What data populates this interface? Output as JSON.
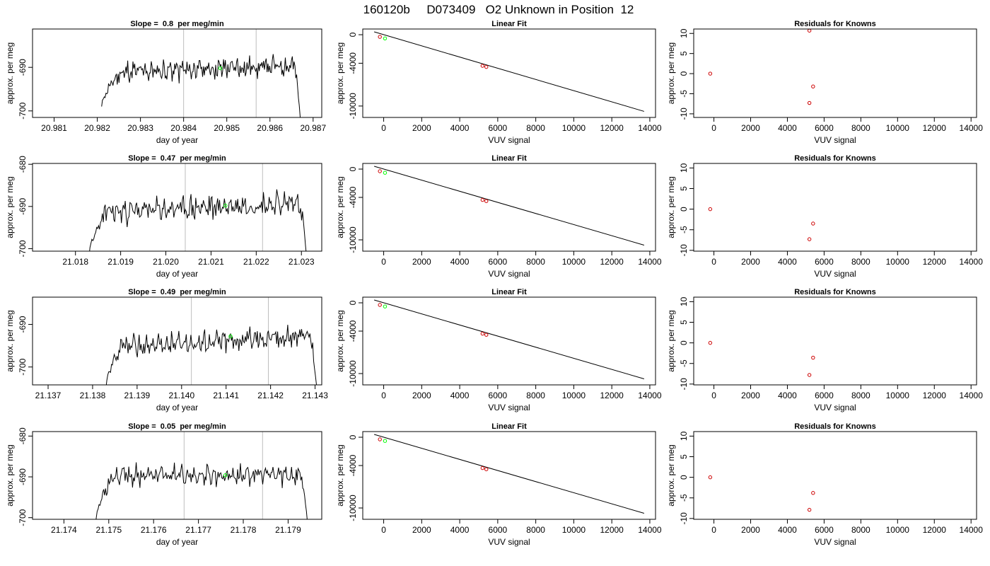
{
  "figure": {
    "title": "160120b     D073409   O2 Unknown in Position  12"
  },
  "chart_data": [
    {
      "type": "line",
      "panel": "timeseries",
      "row": 0,
      "title": "Slope =  0.8  per meg/min",
      "xlabel": "day of year",
      "ylabel": "approx. per meg",
      "xlim": [
        20.9805,
        20.9872
      ],
      "ylim": [
        -701.5,
        -681.2
      ],
      "xticks": [
        20.981,
        20.982,
        20.983,
        20.984,
        20.985,
        20.986,
        20.987
      ],
      "xtick_labels": [
        "20.981",
        "20.982",
        "20.983",
        "20.984",
        "20.985",
        "20.986",
        "20.987"
      ],
      "yticks": [
        -700,
        -690
      ],
      "ytick_labels": [
        "-700",
        "-690"
      ],
      "vlines": [
        20.984,
        20.98568
      ],
      "trace": {
        "x_start": 20.9821,
        "x_end": 20.98672,
        "base": -690.4,
        "trend": 1.8,
        "settle": -699,
        "settle_frac": 0.1,
        "end_drop": -703,
        "drop_frac": 0.03,
        "noise": 1.4,
        "n": 230,
        "seed": 11
      },
      "marker": {
        "x": 20.98485,
        "y": -690.2
      },
      "line_color": "#000000",
      "vline_color": "#bebebe",
      "marker_color": "#00ff00"
    },
    {
      "type": "line",
      "panel": "timeseries",
      "row": 1,
      "title": "Slope =  0.47  per meg/min",
      "xlabel": "day of year",
      "ylabel": "approx. per meg",
      "xlim": [
        21.01705,
        21.02345
      ],
      "ylim": [
        -700.6,
        -679.8
      ],
      "xticks": [
        21.018,
        21.019,
        21.02,
        21.021,
        21.022,
        21.023
      ],
      "xtick_labels": [
        "21.018",
        "21.019",
        "21.020",
        "21.021",
        "21.022",
        "21.023"
      ],
      "yticks": [
        -700,
        -690,
        -680
      ],
      "ytick_labels": [
        "-700",
        "-690",
        "-680"
      ],
      "vlines": [
        21.02043,
        21.02214
      ],
      "trace": {
        "x_start": 21.0183,
        "x_end": 21.02313,
        "base": -690.3,
        "trend": 2.6,
        "settle": -702,
        "settle_frac": 0.08,
        "end_drop": -703,
        "drop_frac": 0.03,
        "noise": 1.6,
        "n": 230,
        "seed": 23
      },
      "marker": {
        "x": 21.02132,
        "y": -689.8
      },
      "line_color": "#000000",
      "vline_color": "#bebebe",
      "marker_color": "#00ff00"
    },
    {
      "type": "line",
      "panel": "timeseries",
      "row": 2,
      "title": "Slope =  0.49  per meg/min",
      "xlabel": "day of year",
      "ylabel": "approx. per meg",
      "xlim": [
        21.13665,
        21.14315
      ],
      "ylim": [
        -704.2,
        -683.6
      ],
      "xticks": [
        21.137,
        21.138,
        21.139,
        21.14,
        21.141,
        21.142,
        21.143
      ],
      "xtick_labels": [
        "21.137",
        "21.138",
        "21.139",
        "21.140",
        "21.141",
        "21.142",
        "21.143"
      ],
      "yticks": [
        -700,
        -690
      ],
      "ytick_labels": [
        "-700",
        "-690"
      ],
      "vlines": [
        21.14022,
        21.14195
      ],
      "trace": {
        "x_start": 21.1383,
        "x_end": 21.14305,
        "base": -694.0,
        "trend": 3.0,
        "settle": -705,
        "settle_frac": 0.08,
        "end_drop": -706,
        "drop_frac": 0.03,
        "noise": 1.5,
        "n": 230,
        "seed": 37
      },
      "marker": {
        "x": 21.1411,
        "y": -692.8
      },
      "line_color": "#000000",
      "vline_color": "#bebebe",
      "marker_color": "#00ff00"
    },
    {
      "type": "line",
      "panel": "timeseries",
      "row": 3,
      "title": "Slope =  0.05  per meg/min",
      "xlabel": "day of year",
      "ylabel": "approx. per meg",
      "xlim": [
        21.1733,
        21.17975
      ],
      "ylim": [
        -700.4,
        -678.9
      ],
      "xticks": [
        21.174,
        21.175,
        21.176,
        21.177,
        21.178,
        21.179
      ],
      "xtick_labels": [
        "21.174",
        "21.175",
        "21.176",
        "21.177",
        "21.178",
        "21.179"
      ],
      "yticks": [
        -700,
        -690,
        -680
      ],
      "ytick_labels": [
        "-700",
        "-690",
        "-680"
      ],
      "vlines": [
        21.17668,
        21.17843
      ],
      "trace": {
        "x_start": 21.1747,
        "x_end": 21.17945,
        "base": -689.6,
        "trend": 0.3,
        "settle": -702,
        "settle_frac": 0.08,
        "end_drop": -703,
        "drop_frac": 0.03,
        "noise": 1.4,
        "n": 230,
        "seed": 53
      },
      "marker": {
        "x": 21.1776,
        "y": -689.6
      },
      "line_color": "#000000",
      "vline_color": "#bebebe",
      "marker_color": "#00ff00"
    },
    {
      "type": "scatter",
      "panel": "fit",
      "row": 0,
      "title": "Linear Fit",
      "xlabel": "VUV signal",
      "ylabel": "approx. per meg",
      "xlim": [
        -1100,
        14300
      ],
      "ylim": [
        -11600,
        800
      ],
      "xticks": [
        0,
        2000,
        4000,
        6000,
        8000,
        10000,
        12000,
        14000
      ],
      "xtick_labels": [
        "0",
        "2000",
        "4000",
        "6000",
        "8000",
        "10000",
        "12000",
        "14000"
      ],
      "yticks": [
        -10000,
        -4000,
        0
      ],
      "ytick_labels": [
        "-10000",
        "-4000",
        "0"
      ],
      "fit_line": {
        "x": [
          -500,
          13700
        ],
        "y": [
          400,
          -10750
        ]
      },
      "knowns": {
        "x": [
          -200,
          5200,
          5400
        ],
        "y": [
          -300,
          -4360,
          -4520
        ]
      },
      "unknown": {
        "x": 70,
        "y": -520
      },
      "known_color": "#cd0000",
      "unknown_color": "#00ff00",
      "line_color": "#000000"
    },
    {
      "type": "scatter",
      "panel": "fit",
      "row": 1,
      "title": "Linear Fit",
      "xlabel": "VUV signal",
      "ylabel": "approx. per meg",
      "xlim": [
        -1100,
        14300
      ],
      "ylim": [
        -11600,
        800
      ],
      "xticks": [
        0,
        2000,
        4000,
        6000,
        8000,
        10000,
        12000,
        14000
      ],
      "xtick_labels": [
        "0",
        "2000",
        "4000",
        "6000",
        "8000",
        "10000",
        "12000",
        "14000"
      ],
      "yticks": [
        -10000,
        -4000,
        0
      ],
      "ytick_labels": [
        "-10000",
        "-4000",
        "0"
      ],
      "fit_line": {
        "x": [
          -500,
          13700
        ],
        "y": [
          400,
          -10750
        ]
      },
      "knowns": {
        "x": [
          -200,
          5200,
          5400
        ],
        "y": [
          -300,
          -4360,
          -4520
        ]
      },
      "unknown": {
        "x": 70,
        "y": -520
      },
      "known_color": "#cd0000",
      "unknown_color": "#00ff00",
      "line_color": "#000000"
    },
    {
      "type": "scatter",
      "panel": "fit",
      "row": 2,
      "title": "Linear Fit",
      "xlabel": "VUV signal",
      "ylabel": "approx. per meg",
      "xlim": [
        -1100,
        14300
      ],
      "ylim": [
        -11600,
        800
      ],
      "xticks": [
        0,
        2000,
        4000,
        6000,
        8000,
        10000,
        12000,
        14000
      ],
      "xtick_labels": [
        "0",
        "2000",
        "4000",
        "6000",
        "8000",
        "10000",
        "12000",
        "14000"
      ],
      "yticks": [
        -10000,
        -4000,
        0
      ],
      "ytick_labels": [
        "-10000",
        "-4000",
        "0"
      ],
      "fit_line": {
        "x": [
          -500,
          13700
        ],
        "y": [
          400,
          -10750
        ]
      },
      "knowns": {
        "x": [
          -200,
          5200,
          5400
        ],
        "y": [
          -300,
          -4360,
          -4520
        ]
      },
      "unknown": {
        "x": 70,
        "y": -520
      },
      "known_color": "#cd0000",
      "unknown_color": "#00ff00",
      "line_color": "#000000"
    },
    {
      "type": "scatter",
      "panel": "fit",
      "row": 3,
      "title": "Linear Fit",
      "xlabel": "VUV signal",
      "ylabel": "approx. per meg",
      "xlim": [
        -1100,
        14300
      ],
      "ylim": [
        -11600,
        800
      ],
      "xticks": [
        0,
        2000,
        4000,
        6000,
        8000,
        10000,
        12000,
        14000
      ],
      "xtick_labels": [
        "0",
        "2000",
        "4000",
        "6000",
        "8000",
        "10000",
        "12000",
        "14000"
      ],
      "yticks": [
        -10000,
        -4000,
        0
      ],
      "ytick_labels": [
        "-10000",
        "-4000",
        "0"
      ],
      "fit_line": {
        "x": [
          -500,
          13700
        ],
        "y": [
          400,
          -10750
        ]
      },
      "knowns": {
        "x": [
          -200,
          5200,
          5400
        ],
        "y": [
          -300,
          -4360,
          -4520
        ]
      },
      "unknown": {
        "x": 70,
        "y": -520
      },
      "known_color": "#cd0000",
      "unknown_color": "#00ff00",
      "line_color": "#000000"
    },
    {
      "type": "scatter",
      "panel": "residuals",
      "row": 0,
      "title": "Residuals for Knowns",
      "xlabel": "VUV signal",
      "ylabel": "approx. per meg",
      "xlim": [
        -1100,
        14300
      ],
      "ylim": [
        -10.9,
        11.1
      ],
      "xticks": [
        0,
        2000,
        4000,
        6000,
        8000,
        10000,
        12000,
        14000
      ],
      "xtick_labels": [
        "0",
        "2000",
        "4000",
        "6000",
        "8000",
        "10000",
        "12000",
        "14000"
      ],
      "yticks": [
        -10,
        -5,
        0,
        5,
        10
      ],
      "ytick_labels": [
        "-10",
        "-5",
        "0",
        "5",
        "10"
      ],
      "points": {
        "x": [
          -200,
          5200,
          5400,
          5200
        ],
        "y": [
          0,
          10.7,
          -3.2,
          -7.3
        ]
      },
      "point_color": "#cd0000"
    },
    {
      "type": "scatter",
      "panel": "residuals",
      "row": 1,
      "title": "Residuals for Knowns",
      "xlabel": "VUV signal",
      "ylabel": "approx. per meg",
      "xlim": [
        -1100,
        14300
      ],
      "ylim": [
        -10.2,
        11.1
      ],
      "xticks": [
        0,
        2000,
        4000,
        6000,
        8000,
        10000,
        12000,
        14000
      ],
      "xtick_labels": [
        "0",
        "2000",
        "4000",
        "6000",
        "8000",
        "10000",
        "12000",
        "14000"
      ],
      "yticks": [
        -10,
        -5,
        0,
        5,
        10
      ],
      "ytick_labels": [
        "-10",
        "-5",
        "0",
        "5",
        "10"
      ],
      "points": {
        "x": [
          -200,
          5400,
          5200
        ],
        "y": [
          0,
          -3.5,
          -7.3
        ]
      },
      "point_color": "#cd0000"
    },
    {
      "type": "scatter",
      "panel": "residuals",
      "row": 2,
      "title": "Residuals for Knowns",
      "xlabel": "VUV signal",
      "ylabel": "approx. per meg",
      "xlim": [
        -1100,
        14300
      ],
      "ylim": [
        -10.2,
        11.1
      ],
      "xticks": [
        0,
        2000,
        4000,
        6000,
        8000,
        10000,
        12000,
        14000
      ],
      "xtick_labels": [
        "0",
        "2000",
        "4000",
        "6000",
        "8000",
        "10000",
        "12000",
        "14000"
      ],
      "yticks": [
        -10,
        -5,
        0,
        5,
        10
      ],
      "ytick_labels": [
        "-10",
        "-5",
        "0",
        "5",
        "10"
      ],
      "points": {
        "x": [
          -200,
          5400,
          5200
        ],
        "y": [
          0,
          -3.6,
          -7.8
        ]
      },
      "point_color": "#cd0000"
    },
    {
      "type": "scatter",
      "panel": "residuals",
      "row": 3,
      "title": "Residuals for Knowns",
      "xlabel": "VUV signal",
      "ylabel": "approx. per meg",
      "xlim": [
        -1100,
        14300
      ],
      "ylim": [
        -10.2,
        11.1
      ],
      "xticks": [
        0,
        2000,
        4000,
        6000,
        8000,
        10000,
        12000,
        14000
      ],
      "xtick_labels": [
        "0",
        "2000",
        "4000",
        "6000",
        "8000",
        "10000",
        "12000",
        "14000"
      ],
      "yticks": [
        -10,
        -5,
        0,
        5,
        10
      ],
      "ytick_labels": [
        "-10",
        "-5",
        "0",
        "5",
        "10"
      ],
      "points": {
        "x": [
          -200,
          5400,
          5200
        ],
        "y": [
          0,
          -3.8,
          -7.9
        ]
      },
      "point_color": "#cd0000"
    }
  ]
}
